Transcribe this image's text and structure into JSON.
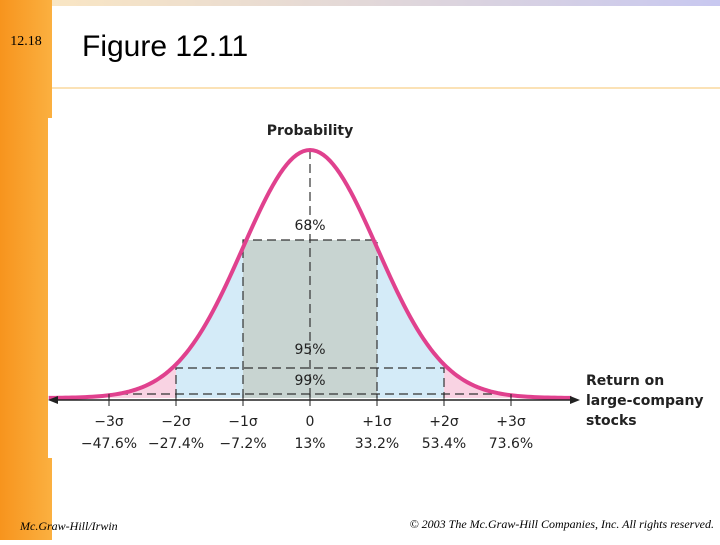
{
  "slide": {
    "number": "12.18",
    "title": "Figure 12.11",
    "footer_left": "Mc.Graw-Hill/Irwin",
    "footer_right": "© 2003 The Mc.Graw-Hill Companies, Inc. All rights reserved."
  },
  "figure": {
    "y_label": "Probability",
    "x_label": [
      "Return on",
      "large-company",
      "stocks"
    ],
    "bands": [
      "68%",
      "95%",
      "99%"
    ],
    "ticks": [
      {
        "sigma": "−3σ",
        "return": "−47.6%"
      },
      {
        "sigma": "−2σ",
        "return": "−27.4%"
      },
      {
        "sigma": "−1σ",
        "return": "−7.2%"
      },
      {
        "sigma": "0",
        "return": "13%"
      },
      {
        "sigma": "+1σ",
        "return": "33.2%"
      },
      {
        "sigma": "+2σ",
        "return": "53.4%"
      },
      {
        "sigma": "+3σ",
        "return": "73.6%"
      }
    ]
  }
}
